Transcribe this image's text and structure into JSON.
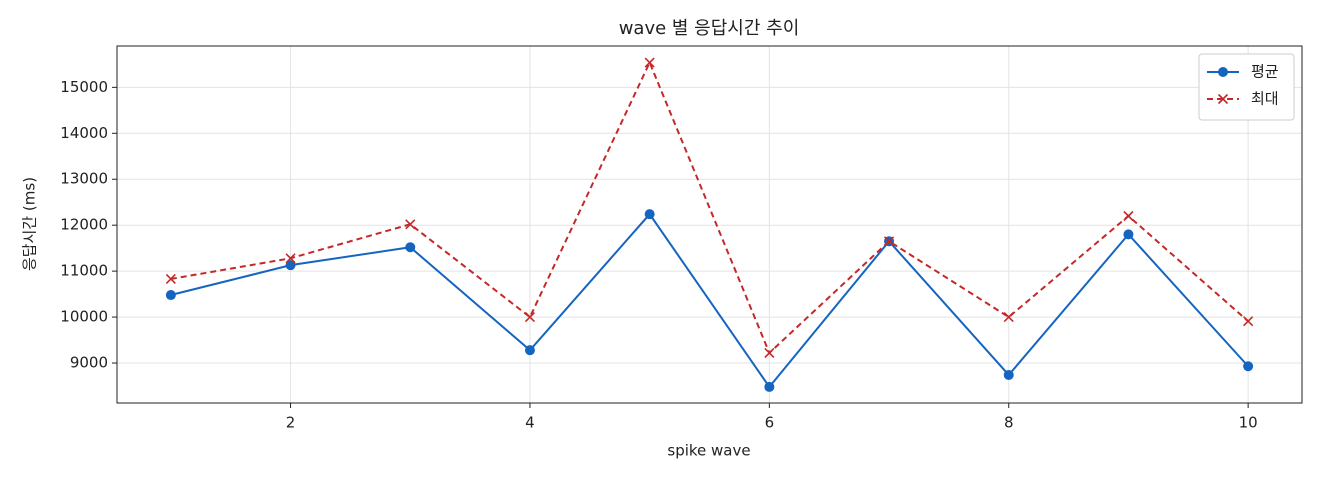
{
  "chart_data": {
    "type": "line",
    "title": "wave 별 응답시간 추이",
    "x_label": "spike wave",
    "y_label": "응답시간 (ms)",
    "x": [
      1,
      2,
      3,
      4,
      5,
      6,
      7,
      8,
      9,
      10
    ],
    "series": [
      {
        "name": "평균",
        "color": "#1565c0",
        "linestyle": "solid",
        "marker": "circle",
        "values": [
          10480,
          11130,
          11520,
          9280,
          12240,
          8480,
          11650,
          8740,
          11800,
          8930
        ]
      },
      {
        "name": "최대",
        "color": "#c62828",
        "linestyle": "dashed",
        "marker": "x",
        "values": [
          10830,
          11280,
          12020,
          10000,
          15540,
          9220,
          11650,
          10000,
          12200,
          9910
        ]
      }
    ],
    "xlim": [
      0.55,
      10.45
    ],
    "xticks": [
      2,
      4,
      6,
      8,
      10
    ],
    "ylim": [
      8130,
      15900
    ],
    "yticks": [
      9000,
      10000,
      11000,
      12000,
      13000,
      14000,
      15000
    ],
    "grid": true,
    "legend": "upper right"
  }
}
